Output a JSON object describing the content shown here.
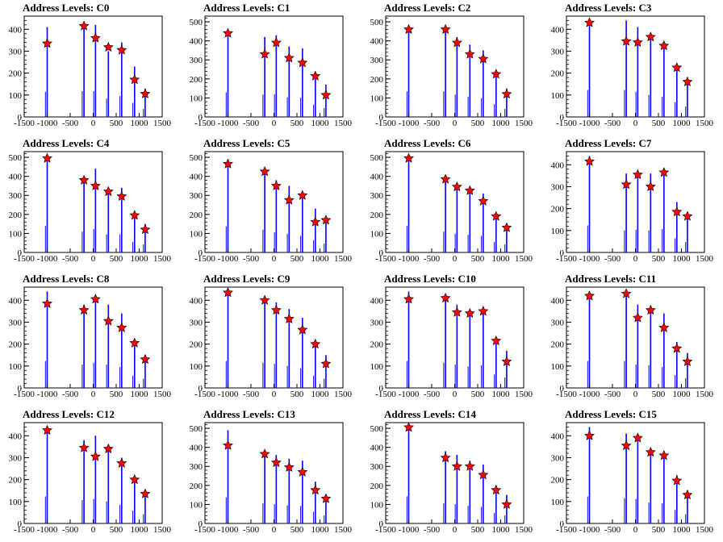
{
  "chart_data": {
    "type": "bar",
    "x_ticks": [
      -1500,
      -1000,
      -500,
      0,
      500,
      1000,
      1500
    ],
    "x_tick_labels": [
      "-1500",
      "-1000",
      "-500",
      "0",
      "500",
      "1000",
      "1500"
    ],
    "xlim": [
      -1500,
      1500
    ],
    "colors": {
      "bars": "#0000ff",
      "markers": "#ff0000",
      "marker_edge": "#000000"
    },
    "marker_shape": "star",
    "grid": false,
    "panels": [
      {
        "title": "Address Levels: C0",
        "ylim": [
          0,
          460
        ],
        "yticks": [
          0,
          100,
          200,
          300,
          400
        ],
        "bar_x": [
          -1000,
          -200,
          50,
          330,
          620,
          900,
          1130
        ],
        "bar_heights": [
          410,
          420,
          420,
          300,
          340,
          230,
          130
        ],
        "markers": [
          {
            "x": -1000,
            "y": 335
          },
          {
            "x": -200,
            "y": 415
          },
          {
            "x": 50,
            "y": 360
          },
          {
            "x": 330,
            "y": 318
          },
          {
            "x": 620,
            "y": 305
          },
          {
            "x": 900,
            "y": 170
          },
          {
            "x": 1130,
            "y": 105
          }
        ]
      },
      {
        "title": "Address Levels: C1",
        "ylim": [
          0,
          530
        ],
        "yticks": [
          0,
          100,
          200,
          300,
          400,
          500
        ],
        "bar_x": [
          -1000,
          -200,
          50,
          330,
          620,
          900,
          1130
        ],
        "bar_heights": [
          460,
          420,
          430,
          370,
          360,
          230,
          170
        ],
        "markers": [
          {
            "x": -1000,
            "y": 440
          },
          {
            "x": -200,
            "y": 330
          },
          {
            "x": 50,
            "y": 390
          },
          {
            "x": 330,
            "y": 310
          },
          {
            "x": 620,
            "y": 285
          },
          {
            "x": 900,
            "y": 215
          },
          {
            "x": 1130,
            "y": 115
          }
        ]
      },
      {
        "title": "Address Levels: C2",
        "ylim": [
          0,
          530
        ],
        "yticks": [
          0,
          100,
          200,
          300,
          400,
          500
        ],
        "bar_x": [
          -1000,
          -200,
          50,
          330,
          620,
          900,
          1130
        ],
        "bar_heights": [
          480,
          480,
          420,
          380,
          350,
          240,
          150
        ],
        "markers": [
          {
            "x": -1000,
            "y": 460
          },
          {
            "x": -200,
            "y": 460
          },
          {
            "x": 50,
            "y": 390
          },
          {
            "x": 330,
            "y": 330
          },
          {
            "x": 620,
            "y": 305
          },
          {
            "x": 900,
            "y": 225
          },
          {
            "x": 1130,
            "y": 120
          }
        ]
      },
      {
        "title": "Address Levels: C3",
        "ylim": [
          0,
          460
        ],
        "yticks": [
          0,
          100,
          200,
          300,
          400
        ],
        "bar_x": [
          -1000,
          -200,
          50,
          330,
          620,
          900,
          1130
        ],
        "bar_heights": [
          440,
          440,
          410,
          360,
          330,
          240,
          170
        ],
        "markers": [
          {
            "x": -1000,
            "y": 430
          },
          {
            "x": -200,
            "y": 345
          },
          {
            "x": 50,
            "y": 340
          },
          {
            "x": 330,
            "y": 365
          },
          {
            "x": 620,
            "y": 325
          },
          {
            "x": 900,
            "y": 225
          },
          {
            "x": 1130,
            "y": 160
          }
        ]
      },
      {
        "title": "Address Levels: C4",
        "ylim": [
          0,
          530
        ],
        "yticks": [
          0,
          100,
          200,
          300,
          400,
          500
        ],
        "bar_x": [
          -1000,
          -200,
          50,
          330,
          620,
          900,
          1130
        ],
        "bar_heights": [
          500,
          390,
          440,
          340,
          340,
          200,
          150
        ],
        "markers": [
          {
            "x": -1000,
            "y": 495
          },
          {
            "x": -200,
            "y": 380
          },
          {
            "x": 50,
            "y": 350
          },
          {
            "x": 330,
            "y": 320
          },
          {
            "x": 620,
            "y": 295
          },
          {
            "x": 900,
            "y": 195
          },
          {
            "x": 1130,
            "y": 120
          }
        ]
      },
      {
        "title": "Address Levels: C5",
        "ylim": [
          0,
          530
        ],
        "yticks": [
          0,
          100,
          200,
          300,
          400,
          500
        ],
        "bar_x": [
          -1000,
          -200,
          50,
          330,
          620,
          900,
          1130
        ],
        "bar_heights": [
          490,
          430,
          380,
          350,
          310,
          230,
          170
        ],
        "markers": [
          {
            "x": -1000,
            "y": 465
          },
          {
            "x": -200,
            "y": 425
          },
          {
            "x": 50,
            "y": 350
          },
          {
            "x": 330,
            "y": 275
          },
          {
            "x": 620,
            "y": 300
          },
          {
            "x": 900,
            "y": 160
          },
          {
            "x": 1130,
            "y": 170
          }
        ]
      },
      {
        "title": "Address Levels: C6",
        "ylim": [
          0,
          530
        ],
        "yticks": [
          0,
          100,
          200,
          300,
          400,
          500
        ],
        "bar_x": [
          -1000,
          -200,
          50,
          330,
          620,
          900,
          1130
        ],
        "bar_heights": [
          500,
          390,
          350,
          330,
          310,
          200,
          150
        ],
        "markers": [
          {
            "x": -1000,
            "y": 495
          },
          {
            "x": -200,
            "y": 385
          },
          {
            "x": 50,
            "y": 345
          },
          {
            "x": 330,
            "y": 325
          },
          {
            "x": 620,
            "y": 270
          },
          {
            "x": 900,
            "y": 190
          },
          {
            "x": 1130,
            "y": 130
          }
        ]
      },
      {
        "title": "Address Levels: C7",
        "ylim": [
          0,
          460
        ],
        "yticks": [
          0,
          100,
          200,
          300,
          400
        ],
        "bar_x": [
          -1000,
          -200,
          50,
          330,
          620,
          900,
          1130
        ],
        "bar_heights": [
          440,
          360,
          370,
          360,
          380,
          230,
          170
        ],
        "markers": [
          {
            "x": -1000,
            "y": 415
          },
          {
            "x": -200,
            "y": 310
          },
          {
            "x": 50,
            "y": 355
          },
          {
            "x": 330,
            "y": 300
          },
          {
            "x": 620,
            "y": 365
          },
          {
            "x": 900,
            "y": 185
          },
          {
            "x": 1130,
            "y": 165
          }
        ]
      },
      {
        "title": "Address Levels: C8",
        "ylim": [
          0,
          460
        ],
        "yticks": [
          0,
          100,
          200,
          300,
          400
        ],
        "bar_x": [
          -1000,
          -200,
          50,
          330,
          620,
          900,
          1130
        ],
        "bar_heights": [
          440,
          380,
          410,
          380,
          340,
          200,
          150
        ],
        "markers": [
          {
            "x": -1000,
            "y": 385
          },
          {
            "x": -200,
            "y": 355
          },
          {
            "x": 50,
            "y": 405
          },
          {
            "x": 330,
            "y": 305
          },
          {
            "x": 620,
            "y": 275
          },
          {
            "x": 900,
            "y": 205
          },
          {
            "x": 1130,
            "y": 130
          }
        ]
      },
      {
        "title": "Address Levels: C9",
        "ylim": [
          0,
          460
        ],
        "yticks": [
          0,
          100,
          200,
          300,
          400
        ],
        "bar_x": [
          -1000,
          -200,
          50,
          330,
          620,
          900,
          1130
        ],
        "bar_heights": [
          440,
          410,
          390,
          360,
          320,
          200,
          150
        ],
        "markers": [
          {
            "x": -1000,
            "y": 435
          },
          {
            "x": -200,
            "y": 400
          },
          {
            "x": 50,
            "y": 355
          },
          {
            "x": 330,
            "y": 315
          },
          {
            "x": 620,
            "y": 265
          },
          {
            "x": 900,
            "y": 200
          },
          {
            "x": 1130,
            "y": 110
          }
        ]
      },
      {
        "title": "Address Levels: C10",
        "ylim": [
          0,
          460
        ],
        "yticks": [
          0,
          100,
          200,
          300,
          400
        ],
        "bar_x": [
          -1000,
          -200,
          50,
          330,
          620,
          900,
          1130
        ],
        "bar_heights": [
          440,
          410,
          380,
          350,
          370,
          220,
          170
        ],
        "markers": [
          {
            "x": -1000,
            "y": 405
          },
          {
            "x": -200,
            "y": 410
          },
          {
            "x": 50,
            "y": 345
          },
          {
            "x": 330,
            "y": 340
          },
          {
            "x": 620,
            "y": 350
          },
          {
            "x": 900,
            "y": 215
          },
          {
            "x": 1130,
            "y": 120
          }
        ]
      },
      {
        "title": "Address Levels: C11",
        "ylim": [
          0,
          460
        ],
        "yticks": [
          0,
          100,
          200,
          300,
          400
        ],
        "bar_x": [
          -1000,
          -200,
          50,
          330,
          620,
          900,
          1130
        ],
        "bar_heights": [
          440,
          440,
          380,
          370,
          340,
          210,
          160
        ],
        "markers": [
          {
            "x": -1000,
            "y": 420
          },
          {
            "x": -200,
            "y": 430
          },
          {
            "x": 50,
            "y": 320
          },
          {
            "x": 330,
            "y": 355
          },
          {
            "x": 620,
            "y": 275
          },
          {
            "x": 900,
            "y": 180
          },
          {
            "x": 1130,
            "y": 120
          }
        ]
      },
      {
        "title": "Address Levels: C12",
        "ylim": [
          0,
          460
        ],
        "yticks": [
          0,
          100,
          200,
          300,
          400
        ],
        "bar_x": [
          -1000,
          -200,
          50,
          330,
          620,
          900,
          1130
        ],
        "bar_heights": [
          440,
          380,
          400,
          360,
          300,
          210,
          150
        ],
        "markers": [
          {
            "x": -1000,
            "y": 425
          },
          {
            "x": -200,
            "y": 345
          },
          {
            "x": 50,
            "y": 305
          },
          {
            "x": 330,
            "y": 340
          },
          {
            "x": 620,
            "y": 275
          },
          {
            "x": 900,
            "y": 200
          },
          {
            "x": 1130,
            "y": 135
          }
        ]
      },
      {
        "title": "Address Levels: C13",
        "ylim": [
          0,
          530
        ],
        "yticks": [
          0,
          100,
          200,
          300,
          400,
          500
        ],
        "bar_x": [
          -1000,
          -200,
          50,
          330,
          620,
          900,
          1130
        ],
        "bar_heights": [
          490,
          380,
          360,
          340,
          330,
          220,
          150
        ],
        "markers": [
          {
            "x": -1000,
            "y": 410
          },
          {
            "x": -200,
            "y": 365
          },
          {
            "x": 50,
            "y": 320
          },
          {
            "x": 330,
            "y": 295
          },
          {
            "x": 620,
            "y": 270
          },
          {
            "x": 900,
            "y": 175
          },
          {
            "x": 1130,
            "y": 130
          }
        ]
      },
      {
        "title": "Address Levels: C14",
        "ylim": [
          0,
          530
        ],
        "yticks": [
          0,
          100,
          200,
          300,
          400,
          500
        ],
        "bar_x": [
          -1000,
          -200,
          50,
          330,
          620,
          900,
          1130
        ],
        "bar_heights": [
          510,
          380,
          360,
          330,
          310,
          200,
          150
        ],
        "markers": [
          {
            "x": -1000,
            "y": 505
          },
          {
            "x": -200,
            "y": 345
          },
          {
            "x": 50,
            "y": 300
          },
          {
            "x": 330,
            "y": 300
          },
          {
            "x": 620,
            "y": 255
          },
          {
            "x": 900,
            "y": 175
          },
          {
            "x": 1130,
            "y": 100
          }
        ]
      },
      {
        "title": "Address Levels: C15",
        "ylim": [
          0,
          460
        ],
        "yticks": [
          0,
          100,
          200,
          300,
          400
        ],
        "bar_x": [
          -1000,
          -200,
          50,
          330,
          620,
          900,
          1130
        ],
        "bar_heights": [
          440,
          410,
          400,
          340,
          330,
          220,
          150
        ],
        "markers": [
          {
            "x": -1000,
            "y": 400
          },
          {
            "x": -200,
            "y": 355
          },
          {
            "x": 50,
            "y": 390
          },
          {
            "x": 330,
            "y": 325
          },
          {
            "x": 620,
            "y": 310
          },
          {
            "x": 900,
            "y": 195
          },
          {
            "x": 1130,
            "y": 130
          }
        ]
      }
    ]
  }
}
